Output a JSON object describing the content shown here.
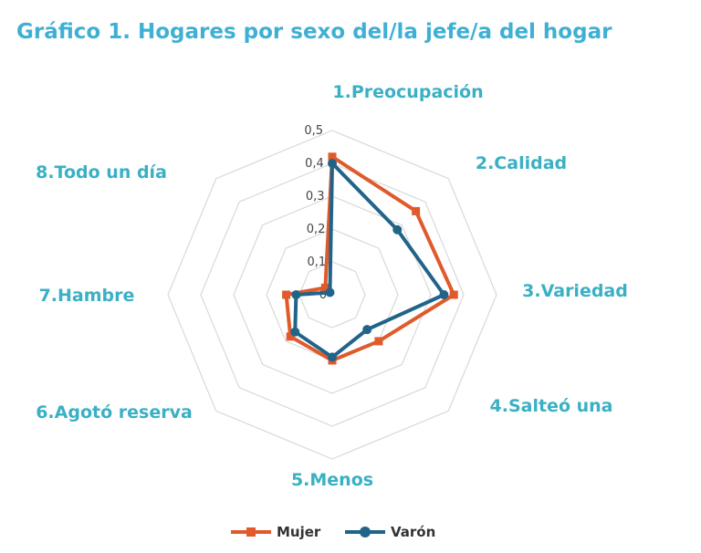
{
  "page_title": "Gráfico 1. Hogares por sexo del/la jefe/a del hogar",
  "colors": {
    "title": "#3fb0d4",
    "axis_labels": "#3ab0c4",
    "grid": "#d9d9d9"
  },
  "chart_data": {
    "type": "radar",
    "title": "Gráfico 1. Hogares por sexo del/la jefe/a del hogar",
    "categories": [
      "1.Preocupación",
      "2.Calidad",
      "3.Variedad",
      "4.Salteó una",
      "5.Menos",
      "6.Agotó reserva",
      "7.Hambre",
      "8.Todo un día"
    ],
    "r_ticks": [
      "0",
      "0,1",
      "0,2",
      "0,3",
      "0,4",
      "0,5"
    ],
    "rlim": [
      0,
      0.5
    ],
    "grid": true,
    "legend_position": "bottom",
    "series": [
      {
        "name": "Mujer",
        "color": "#e05a2b",
        "values": [
          0.42,
          0.36,
          0.37,
          0.2,
          0.2,
          0.18,
          0.14,
          0.03
        ]
      },
      {
        "name": "Varón",
        "color": "#21648a",
        "values": [
          0.4,
          0.28,
          0.34,
          0.15,
          0.19,
          0.16,
          0.11,
          0.01
        ]
      }
    ]
  }
}
